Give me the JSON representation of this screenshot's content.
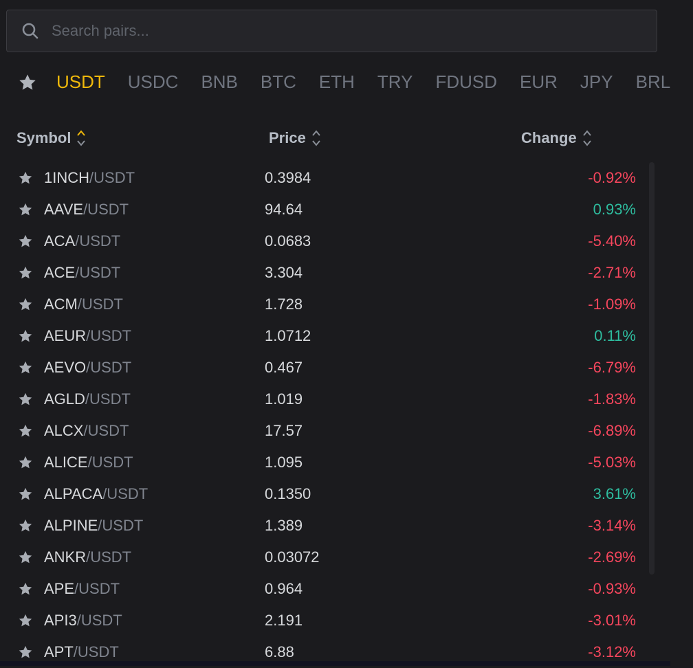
{
  "search": {
    "placeholder": "Search pairs..."
  },
  "tabs": [
    "USDT",
    "USDC",
    "BNB",
    "BTC",
    "ETH",
    "TRY",
    "FDUSD",
    "EUR",
    "JPY",
    "BRL"
  ],
  "active_tab": "USDT",
  "columns": {
    "symbol": "Symbol",
    "price": "Price",
    "change": "Change"
  },
  "colors": {
    "accent": "#f0b90b",
    "up": "#2ebd9f",
    "down": "#f6465d"
  },
  "rows": [
    {
      "base": "1INCH",
      "quote": "/USDT",
      "price": "0.3984",
      "change": "-0.92%",
      "dir": "down"
    },
    {
      "base": "AAVE",
      "quote": "/USDT",
      "price": "94.64",
      "change": "0.93%",
      "dir": "up"
    },
    {
      "base": "ACA",
      "quote": "/USDT",
      "price": "0.0683",
      "change": "-5.40%",
      "dir": "down"
    },
    {
      "base": "ACE",
      "quote": "/USDT",
      "price": "3.304",
      "change": "-2.71%",
      "dir": "down"
    },
    {
      "base": "ACM",
      "quote": "/USDT",
      "price": "1.728",
      "change": "-1.09%",
      "dir": "down"
    },
    {
      "base": "AEUR",
      "quote": "/USDT",
      "price": "1.0712",
      "change": "0.11%",
      "dir": "up"
    },
    {
      "base": "AEVO",
      "quote": "/USDT",
      "price": "0.467",
      "change": "-6.79%",
      "dir": "down"
    },
    {
      "base": "AGLD",
      "quote": "/USDT",
      "price": "1.019",
      "change": "-1.83%",
      "dir": "down"
    },
    {
      "base": "ALCX",
      "quote": "/USDT",
      "price": "17.57",
      "change": "-6.89%",
      "dir": "down"
    },
    {
      "base": "ALICE",
      "quote": "/USDT",
      "price": "1.095",
      "change": "-5.03%",
      "dir": "down"
    },
    {
      "base": "ALPACA",
      "quote": "/USDT",
      "price": "0.1350",
      "change": "3.61%",
      "dir": "up"
    },
    {
      "base": "ALPINE",
      "quote": "/USDT",
      "price": "1.389",
      "change": "-3.14%",
      "dir": "down"
    },
    {
      "base": "ANKR",
      "quote": "/USDT",
      "price": "0.03072",
      "change": "-2.69%",
      "dir": "down"
    },
    {
      "base": "APE",
      "quote": "/USDT",
      "price": "0.964",
      "change": "-0.93%",
      "dir": "down"
    },
    {
      "base": "API3",
      "quote": "/USDT",
      "price": "2.191",
      "change": "-3.01%",
      "dir": "down"
    },
    {
      "base": "APT",
      "quote": "/USDT",
      "price": "6.88",
      "change": "-3.12%",
      "dir": "down"
    }
  ]
}
